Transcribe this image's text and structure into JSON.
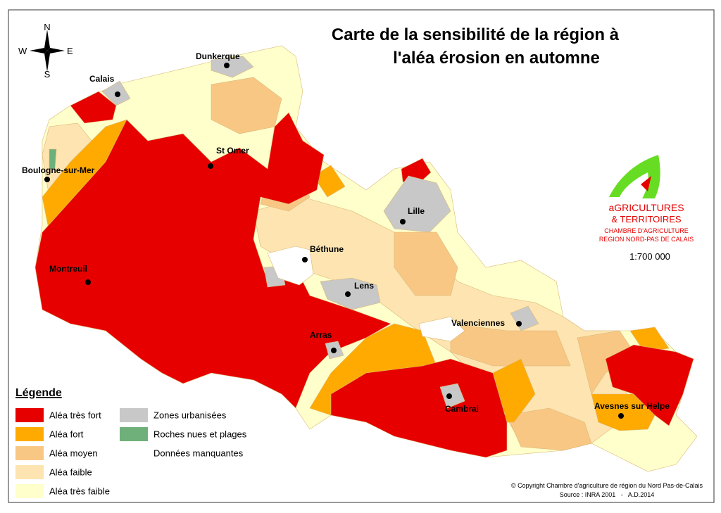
{
  "title": [
    "Carte de la sensibilité de la région à",
    "l'aléa érosion en automne"
  ],
  "compass": {
    "n": "N",
    "s": "S",
    "e": "E",
    "w": "W"
  },
  "cities": [
    "Dunkerque",
    "Calais",
    "St Omer",
    "Boulogne-sur-Mer",
    "Lille",
    "Béthune",
    "Montreuil",
    "Lens",
    "Valenciennes",
    "Arras",
    "Cambrai",
    "Avesnes sur Helpe"
  ],
  "legend": {
    "title": "Légende",
    "items": [
      {
        "label": "Aléa très fort",
        "color": "#e60000"
      },
      {
        "label": "Aléa fort",
        "color": "#ffaa00"
      },
      {
        "label": "Aléa moyen",
        "color": "#f9c784"
      },
      {
        "label": "Aléa faible",
        "color": "#fde4b0"
      },
      {
        "label": "Aléa très faible",
        "color": "#ffffcc"
      },
      {
        "label": "Zones urbanisées",
        "color": "#c8c8c8"
      },
      {
        "label": "Roches nues et plages",
        "color": "#6fb07a"
      },
      {
        "label": "Données manquantes",
        "color": "#ffffff"
      }
    ]
  },
  "logo": [
    "aGRICULTURES",
    "& TERRITOIRES",
    "CHAMBRE D'AGRICULTURE",
    "REGION NORD-PAS DE CALAIS"
  ],
  "scale": "1:700 000",
  "copyright": "© Copyright Chambre d'agriculture de région du Nord Pas-de-Calais",
  "source": "Source : INRA 2001   -   A.D.2014"
}
